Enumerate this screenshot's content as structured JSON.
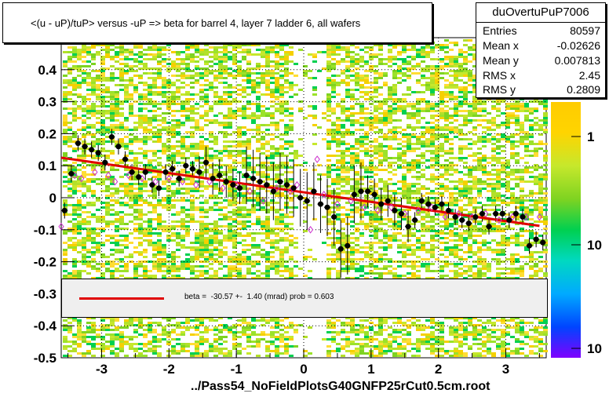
{
  "title": "<(u - uP)/tuP> versus  -uP => beta for barrel 4, layer 7 ladder 6, all wafers",
  "stats": {
    "name": "duOvertuPuP7006",
    "rows": [
      {
        "label": "Entries",
        "value": "80597"
      },
      {
        "label": "Mean x",
        "value": "-0.02626"
      },
      {
        "label": "Mean y",
        "value": "0.007813"
      },
      {
        "label": "RMS x",
        "value": "2.45"
      },
      {
        "label": "RMS y",
        "value": "0.2809"
      }
    ]
  },
  "fit": {
    "text": "beta =  -30.57 +-  1.40 (mrad) prob = 0.603",
    "line_color": "#e00000"
  },
  "filename": "../Pass54_NoFieldPlotsG40GNFP25rCut0.5cm.root",
  "chart_data": {
    "type": "scatter",
    "xlim": [
      -3.6,
      3.6
    ],
    "ylim": [
      -0.5,
      0.5
    ],
    "x_ticks": [
      "-3",
      "-2",
      "-1",
      "0",
      "1",
      "2",
      "3"
    ],
    "x_tick_values": [
      -3,
      -2,
      -1,
      0,
      1,
      2,
      3
    ],
    "y_ticks": [
      "0.4",
      "0.3",
      "0.2",
      "0.1",
      "0",
      "-0.1",
      "-0.2",
      "-0.3",
      "-0.4",
      "-0.5"
    ],
    "y_tick_values": [
      0.4,
      0.3,
      0.2,
      0.1,
      0,
      -0.1,
      -0.2,
      -0.3,
      -0.4,
      -0.5
    ],
    "colorbar_labels": [
      "1",
      "10",
      "10"
    ],
    "grid": true,
    "background": "2D histogram (color map)",
    "fit_line": {
      "x": [
        -3.6,
        3.5
      ],
      "y": [
        0.125,
        -0.088
      ]
    },
    "series": [
      {
        "marker": "filled-circle",
        "color": "#000000",
        "x": [
          -3.55,
          -3.45,
          -3.35,
          -3.25,
          -3.15,
          -3.05,
          -2.95,
          -2.85,
          -2.75,
          -2.65,
          -2.55,
          -2.45,
          -2.35,
          -2.25,
          -2.15,
          -2.05,
          -1.95,
          -1.85,
          -1.75,
          -1.65,
          -1.55,
          -1.45,
          -1.35,
          -1.25,
          -1.15,
          -1.05,
          -0.95,
          -0.85,
          -0.75,
          -0.65,
          -0.55,
          -0.45,
          -0.35,
          -0.25,
          -0.15,
          -0.05,
          0.05,
          0.15,
          0.25,
          0.35,
          0.45,
          0.55,
          0.65,
          0.75,
          0.85,
          0.95,
          1.05,
          1.15,
          1.25,
          1.35,
          1.45,
          1.55,
          1.65,
          1.75,
          1.85,
          1.95,
          2.05,
          2.15,
          2.25,
          2.35,
          2.45,
          2.55,
          2.65,
          2.75,
          2.85,
          2.95,
          3.05,
          3.15,
          3.25,
          3.35,
          3.45,
          3.55
        ],
        "y": [
          -0.04,
          0.075,
          0.17,
          0.16,
          0.15,
          0.14,
          0.11,
          0.19,
          0.16,
          0.12,
          0.08,
          0.065,
          0.08,
          0.04,
          0.03,
          0.08,
          0.09,
          0.06,
          0.1,
          0.09,
          0.08,
          0.11,
          0.06,
          0.07,
          0.05,
          0.04,
          0.03,
          0.07,
          0.06,
          0.05,
          0.04,
          0.02,
          0.05,
          0.04,
          0.03,
          0.0,
          -0.01,
          0.02,
          -0.02,
          -0.03,
          -0.06,
          -0.16,
          -0.15,
          0.01,
          0.02,
          0.02,
          0.01,
          -0.02,
          -0.01,
          -0.04,
          -0.05,
          -0.09,
          -0.07,
          -0.01,
          -0.02,
          -0.03,
          -0.02,
          -0.04,
          -0.06,
          -0.07,
          -0.08,
          -0.06,
          -0.05,
          -0.09,
          -0.05,
          -0.05,
          -0.07,
          -0.05,
          -0.06,
          -0.15,
          -0.13,
          -0.14
        ]
      },
      {
        "marker": "open-diamond",
        "color": "#cc33cc",
        "x": [
          -3.6,
          -3.4,
          -3.3,
          -3.1,
          -2.9,
          -2.8,
          -2.6,
          -2.4,
          -2.2,
          -2.0,
          -1.8,
          -1.6,
          -1.4,
          -1.2,
          -1.0,
          -0.8,
          -0.6,
          -0.4,
          -0.2,
          -0.1,
          0.1,
          0.2,
          0.3,
          0.5,
          0.7,
          0.9,
          1.1,
          1.3,
          1.5,
          1.7,
          1.9,
          2.1,
          2.3,
          2.5,
          2.7,
          2.9,
          3.1,
          3.3,
          3.5
        ],
        "y": [
          -0.09,
          0.07,
          0.06,
          0.08,
          0.07,
          0.05,
          0.07,
          0.06,
          0.05,
          0.06,
          0.05,
          0.04,
          0.05,
          0.03,
          0.04,
          0.02,
          -0.01,
          0.03,
          0.02,
          0.04,
          -0.1,
          0.12,
          0.01,
          -0.02,
          -0.01,
          -0.03,
          -0.04,
          -0.03,
          -0.05,
          -0.04,
          -0.03,
          -0.06,
          -0.05,
          -0.06,
          -0.05,
          -0.07,
          -0.06,
          -0.06,
          -0.06
        ]
      }
    ]
  }
}
